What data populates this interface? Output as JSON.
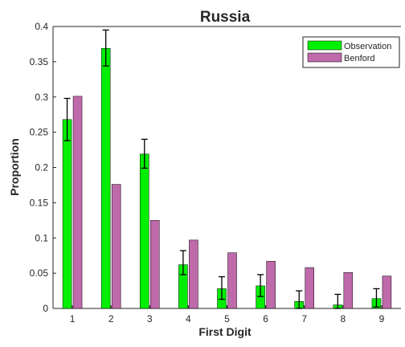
{
  "chart_data": {
    "type": "bar",
    "title": "Russia",
    "xlabel": "First Digit",
    "ylabel": "Proportion",
    "categories": [
      "1",
      "2",
      "3",
      "4",
      "5",
      "6",
      "7",
      "8",
      "9"
    ],
    "ylim": [
      0,
      0.4
    ],
    "yticks": [
      0,
      0.05,
      0.1,
      0.15,
      0.2,
      0.25,
      0.3,
      0.35,
      0.4
    ],
    "ytick_labels": [
      "0",
      "0.05",
      "0.1",
      "0.15",
      "0.2",
      "0.25",
      "0.3",
      "0.35",
      "0.4"
    ],
    "grid": false,
    "legend_position": "top-right",
    "series": [
      {
        "name": "Observation",
        "color": "#00ee00",
        "values": [
          0.268,
          0.369,
          0.219,
          0.062,
          0.028,
          0.032,
          0.01,
          0.005,
          0.014
        ],
        "error_low": [
          0.238,
          0.344,
          0.199,
          0.048,
          0.013,
          0.017,
          0.0,
          0.0,
          0.002
        ],
        "error_high": [
          0.298,
          0.395,
          0.24,
          0.082,
          0.045,
          0.048,
          0.025,
          0.02,
          0.028
        ]
      },
      {
        "name": "Benford",
        "color": "#bf6aaa",
        "values": [
          0.301,
          0.176,
          0.125,
          0.097,
          0.079,
          0.067,
          0.058,
          0.051,
          0.046
        ]
      }
    ]
  }
}
